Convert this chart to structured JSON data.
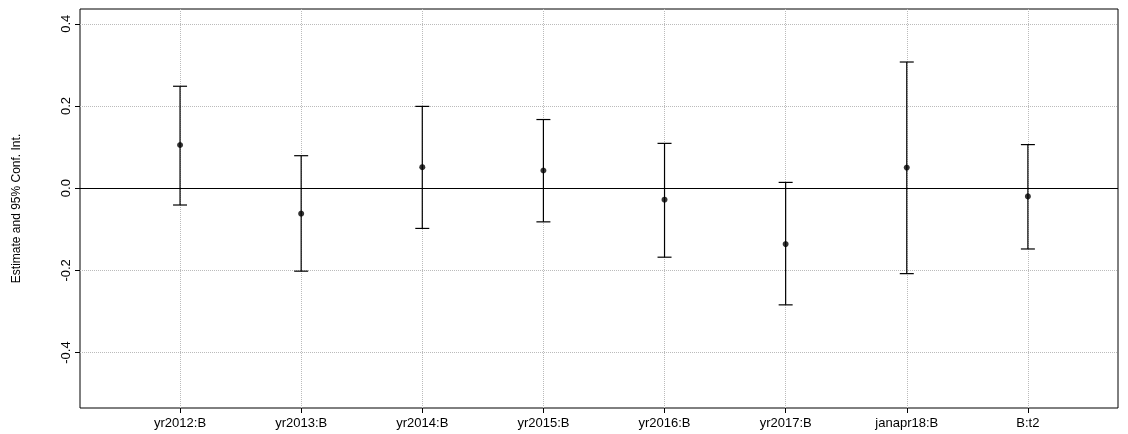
{
  "chart_data": {
    "type": "scatter",
    "ylabel": "Estimate and 95% Conf. Int.",
    "categories": [
      "yr2012:B",
      "yr2013:B",
      "yr2014:B",
      "yr2015:B",
      "yr2016:B",
      "yr2017:B",
      "janapr18:B",
      "B:t2"
    ],
    "values": [
      0.105,
      -0.062,
      0.051,
      0.043,
      -0.028,
      -0.136,
      0.05,
      -0.02
    ],
    "errors": [
      [
        -0.041,
        0.248
      ],
      [
        -0.202,
        0.079
      ],
      [
        -0.098,
        0.199
      ],
      [
        -0.082,
        0.167
      ],
      [
        -0.168,
        0.109
      ],
      [
        -0.284,
        0.014
      ],
      [
        -0.208,
        0.307
      ],
      [
        -0.148,
        0.106
      ]
    ],
    "color": "#000000",
    "marker": "circle",
    "ylim": [
      -0.535,
      0.436
    ],
    "yticks": [
      -0.4,
      -0.2,
      {
        "value": 0,
        "label": "0.0"
      },
      0.2,
      0.4
    ],
    "ref_lines": [
      {
        "axis": "y",
        "value": 0,
        "color": "#000000"
      }
    ],
    "grid": true
  }
}
